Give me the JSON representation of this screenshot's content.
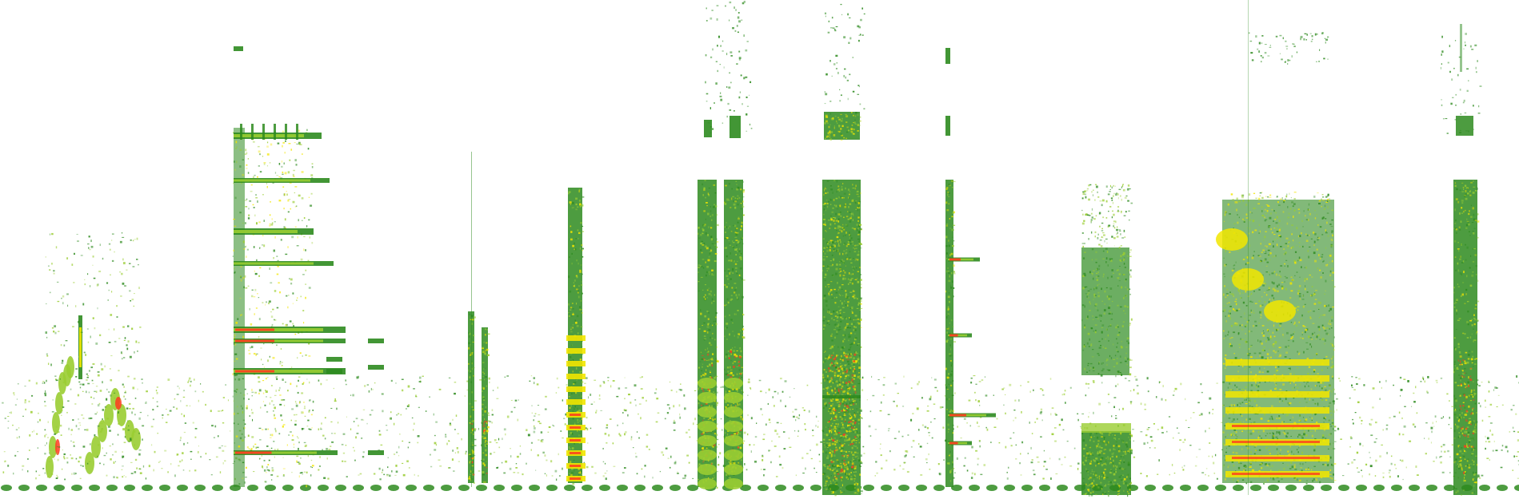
{
  "image": {
    "kind": "spectrogram",
    "background": "#ffffff",
    "palette": {
      "low": "#2e8b1f",
      "mid": "#9acd32",
      "high": "#f2e600",
      "peak": "#ff3b1f"
    },
    "noise_band": "bottom",
    "events_count": 12
  }
}
